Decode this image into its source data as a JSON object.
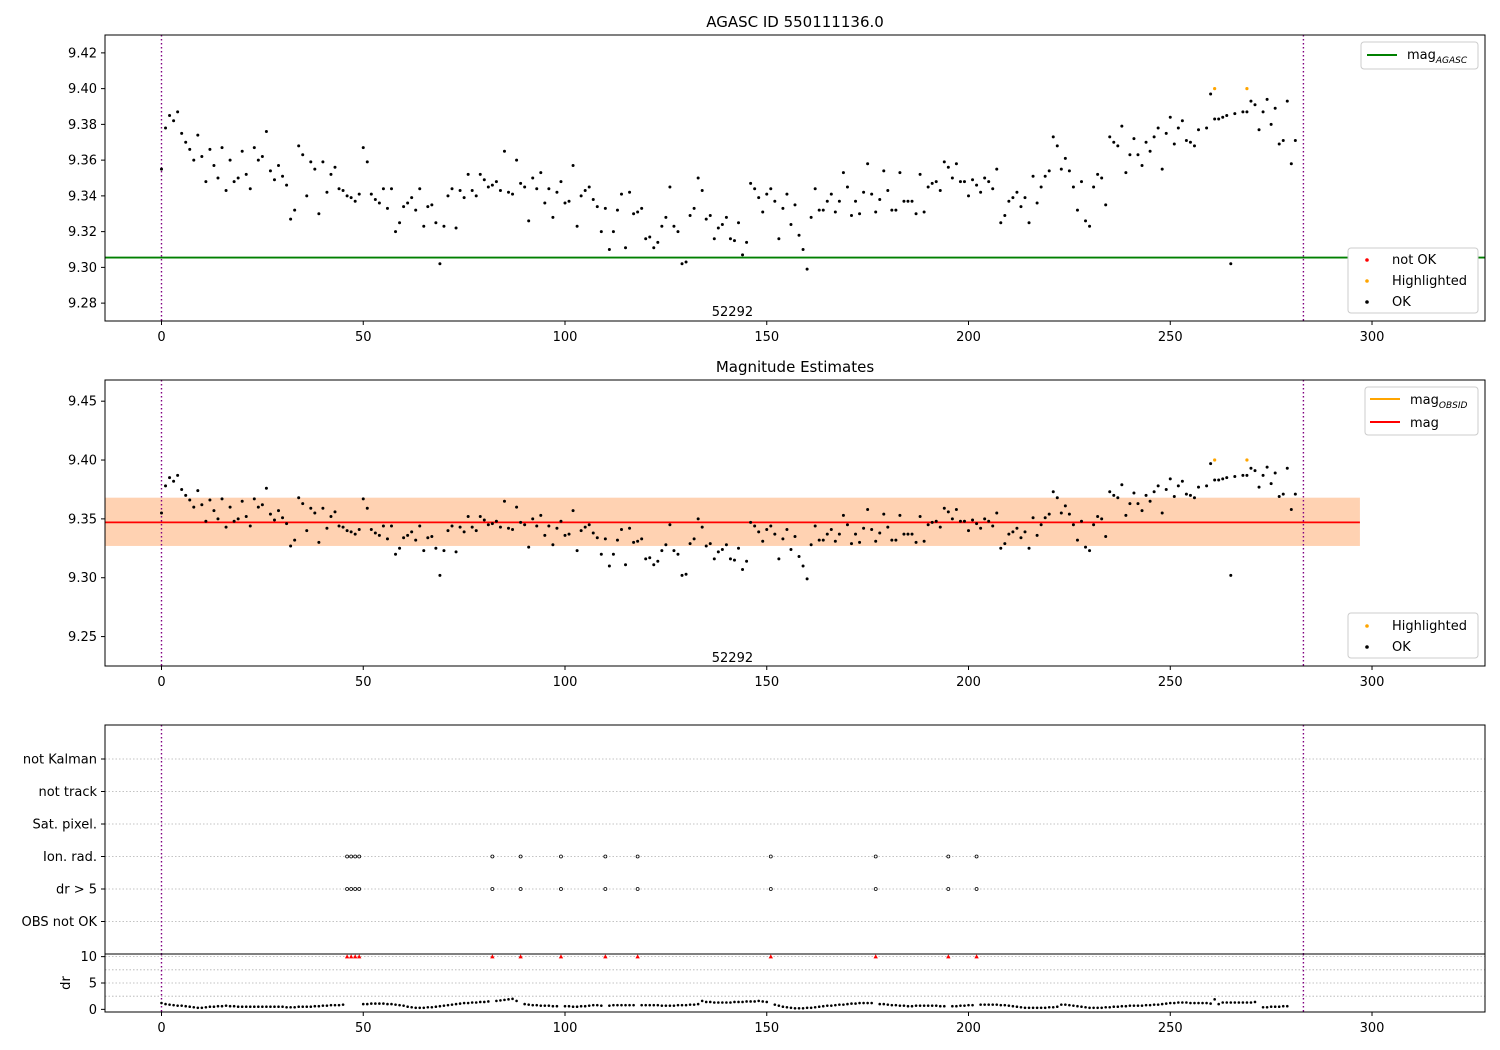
{
  "chart_data": [
    {
      "type": "scatter",
      "title": "AGASC ID 550111136.0",
      "xlim": [
        -14,
        328
      ],
      "ylim": [
        9.27,
        9.43
      ],
      "xticks": [
        0,
        50,
        100,
        150,
        200,
        250,
        300
      ],
      "yticks": [
        9.28,
        9.3,
        9.32,
        9.34,
        9.36,
        9.38,
        9.4,
        9.42
      ],
      "ytick_decimals": 2,
      "vlines": [
        0,
        283
      ],
      "annotation": {
        "text": "52292",
        "x": 141.5,
        "y": 9.275
      },
      "hline": {
        "name": "mag",
        "subscript": "AGASC",
        "value": 9.3055,
        "color": "#008000"
      },
      "legends": [
        {
          "placement": "upper-right",
          "entries": [
            {
              "label": "mag",
              "subscript": "AGASC",
              "type": "line",
              "color": "#008000"
            }
          ]
        },
        {
          "placement": "lower-right",
          "entries": [
            {
              "label": "not OK",
              "type": "marker",
              "color": "#ff0000"
            },
            {
              "label": "Highlighted",
              "type": "marker",
              "color": "#ffa500"
            },
            {
              "label": "OK",
              "type": "marker",
              "color": "#000000"
            }
          ]
        }
      ],
      "series": [
        {
          "name": "OK",
          "color": "#000000",
          "values": [
            9.355,
            9.378,
            9.385,
            9.382,
            9.387,
            9.375,
            9.37,
            9.366,
            9.36,
            9.374,
            9.362,
            9.348,
            9.366,
            9.357,
            9.35,
            9.367,
            9.343,
            9.36,
            9.348,
            9.35,
            9.365,
            9.352,
            9.344,
            9.367,
            9.36,
            9.362,
            9.376,
            9.354,
            9.349,
            9.357,
            9.351,
            9.346,
            9.327,
            9.332,
            9.368,
            9.363,
            9.34,
            9.359,
            9.355,
            9.33,
            9.359,
            9.342,
            9.352,
            9.356,
            9.344,
            9.343,
            9.34,
            9.339,
            9.337,
            9.341,
            9.367,
            9.359,
            9.341,
            9.338,
            9.336,
            9.344,
            9.333,
            9.344,
            9.32,
            9.325,
            9.334,
            9.336,
            9.339,
            9.332,
            9.344,
            9.323,
            9.334,
            9.335,
            9.325,
            9.302,
            9.323,
            9.34,
            9.344,
            9.322,
            9.343,
            9.339,
            9.352,
            9.343,
            9.34,
            9.352,
            9.349,
            9.345,
            9.346,
            9.348,
            9.343,
            9.365,
            9.342,
            9.341,
            9.36,
            9.347,
            9.345,
            9.326,
            9.35,
            9.344,
            9.353,
            9.336,
            9.344,
            9.328,
            9.342,
            9.348,
            9.336,
            9.337,
            9.357,
            9.323,
            9.34,
            9.343,
            9.345,
            9.338,
            9.334,
            9.32,
            9.333,
            9.31,
            9.32,
            9.332,
            9.341,
            9.311,
            9.342,
            9.33,
            9.331,
            9.333,
            9.316,
            9.317,
            9.311,
            9.314,
            9.323,
            9.328,
            9.345,
            9.323,
            9.32,
            9.302,
            9.303,
            9.329,
            9.333,
            9.35,
            9.343,
            9.327,
            9.329,
            9.316,
            9.322,
            9.324,
            9.328,
            9.316,
            9.315,
            9.325,
            9.307,
            9.314,
            9.347,
            9.344,
            9.339,
            9.331,
            9.341,
            9.344,
            9.337,
            9.316,
            9.333,
            9.341,
            9.324,
            9.335,
            9.318,
            9.31,
            9.299,
            9.328,
            9.344,
            9.332,
            9.332,
            9.337,
            9.341,
            9.331,
            9.337,
            9.353,
            9.345,
            9.329,
            9.337,
            9.33,
            9.342,
            9.358,
            9.341,
            9.331,
            9.338,
            9.354,
            9.343,
            9.332,
            9.332,
            9.353,
            9.337,
            9.337,
            9.337,
            9.33,
            9.352,
            9.331,
            9.345,
            9.347,
            9.348,
            9.343,
            9.359,
            9.356,
            9.35,
            9.358,
            9.348,
            9.348,
            9.34,
            9.349,
            9.346,
            9.342,
            9.35,
            9.348,
            9.344,
            9.355,
            9.325,
            9.329,
            9.337,
            9.339,
            9.342,
            9.334,
            9.339,
            9.325,
            9.351,
            9.336,
            9.345,
            9.351,
            9.354,
            9.373,
            9.368,
            9.355,
            9.361,
            9.354,
            9.345,
            9.332,
            9.348,
            9.326,
            9.323,
            9.345,
            9.352,
            9.35,
            9.335,
            9.373,
            9.37,
            9.368,
            9.379,
            9.353,
            9.363,
            9.372,
            9.363,
            9.357,
            9.37,
            9.365,
            9.373,
            9.378,
            9.355,
            9.375,
            9.384,
            9.369,
            9.378,
            9.382,
            9.371,
            9.37,
            9.368,
            9.377,
            null,
            9.378,
            9.397,
            9.383,
            9.383,
            9.384,
            9.385,
            9.302,
            9.386,
            null,
            9.387,
            9.387,
            9.393,
            9.391,
            9.377,
            9.387,
            9.394,
            9.38,
            9.389,
            9.369,
            9.371,
            9.393,
            9.358,
            9.371
          ]
        },
        {
          "name": "Highlighted",
          "color": "#ffa500",
          "points": [
            {
              "x": 261,
              "y": 9.4
            },
            {
              "x": 269,
              "y": 9.4
            }
          ]
        }
      ]
    },
    {
      "type": "scatter",
      "title": "Magnitude Estimates",
      "xlim": [
        -14,
        328
      ],
      "ylim": [
        9.225,
        9.468
      ],
      "xticks": [
        0,
        50,
        100,
        150,
        200,
        250,
        300
      ],
      "yticks": [
        9.25,
        9.3,
        9.35,
        9.4,
        9.45
      ],
      "ytick_decimals": 2,
      "vlines": [
        0,
        283
      ],
      "annotation": {
        "text": "52292",
        "x": 141.5,
        "y": 9.232
      },
      "mag_line": {
        "value": 9.347,
        "color": "#ff0000",
        "x_range": [
          -14,
          297
        ]
      },
      "bands": [
        {
          "y_range": [
            9.327,
            9.368
          ],
          "x_range": [
            -14,
            297
          ],
          "color": "#ffc0cb",
          "opacity": 0.5
        },
        {
          "y_range": [
            9.327,
            9.368
          ],
          "x_range": [
            -14,
            297
          ],
          "color": "#ffa500",
          "opacity": 0.22
        }
      ],
      "legends": [
        {
          "placement": "upper-right",
          "entries": [
            {
              "label": "mag",
              "subscript": "OBSID",
              "type": "line",
              "color": "#ffa500"
            },
            {
              "label": "mag",
              "type": "line",
              "color": "#ff0000"
            }
          ]
        },
        {
          "placement": "lower-right",
          "entries": [
            {
              "label": "Highlighted",
              "type": "marker",
              "color": "#ffa500"
            },
            {
              "label": "OK",
              "type": "marker",
              "color": "#000000"
            }
          ]
        }
      ],
      "series_ref": 0
    },
    {
      "type": "scatter",
      "title": "",
      "xlim": [
        -14,
        328
      ],
      "categories": [
        "not Kalman",
        "not track",
        "Sat. pixel.",
        "Ion. rad.",
        "dr > 5",
        "OBS not OK"
      ],
      "vlines": [
        0,
        283
      ],
      "flags": [
        {
          "category": "Ion. rad.",
          "x": [
            46,
            47,
            48,
            49,
            82,
            89,
            99,
            110,
            118,
            151,
            177,
            195,
            202
          ]
        },
        {
          "category": "dr > 5",
          "x": [
            46,
            47,
            48,
            49,
            82,
            89,
            99,
            110,
            118,
            151,
            177,
            195,
            202
          ]
        }
      ]
    },
    {
      "type": "scatter",
      "title": "",
      "ylabel": "dr",
      "xlim": [
        -14,
        328
      ],
      "ylim": [
        -0.5,
        10.5
      ],
      "xticks": [
        0,
        50,
        100,
        150,
        200,
        250,
        300
      ],
      "yticks": [
        0,
        5,
        10
      ],
      "ytick_decimals": 0,
      "vlines": [
        0,
        283
      ],
      "clipped": {
        "color": "#ff0000",
        "value": 10,
        "x": [
          46,
          47,
          48,
          49,
          82,
          89,
          99,
          110,
          118,
          151,
          177,
          195,
          202
        ]
      },
      "dr_values": [
        1.2,
        1.0,
        0.9,
        0.8,
        0.7,
        0.7,
        0.6,
        0.5,
        0.4,
        0.3,
        0.3,
        0.4,
        0.5,
        0.5,
        0.6,
        0.6,
        0.7,
        0.6,
        0.6,
        0.5,
        0.5,
        0.5,
        0.5,
        0.5,
        0.5,
        0.5,
        0.5,
        0.5,
        0.5,
        0.5,
        0.5,
        0.4,
        0.4,
        0.4,
        0.5,
        0.5,
        0.5,
        0.5,
        0.6,
        0.6,
        0.7,
        0.7,
        0.8,
        0.8,
        0.8,
        0.9,
        null,
        null,
        null,
        null,
        1.0,
        1.0,
        1.1,
        1.1,
        1.1,
        1.1,
        1.0,
        1.0,
        0.9,
        0.8,
        0.7,
        0.5,
        0.4,
        0.3,
        0.3,
        0.3,
        0.4,
        0.4,
        0.5,
        0.6,
        0.7,
        0.8,
        0.9,
        1.0,
        1.1,
        1.2,
        1.2,
        1.3,
        1.3,
        1.4,
        1.4,
        1.5,
        null,
        1.6,
        1.7,
        1.8,
        1.9,
        2.0,
        1.6,
        null,
        1.0,
        0.9,
        0.8,
        0.8,
        0.7,
        0.7,
        0.7,
        0.6,
        0.6,
        null,
        0.6,
        0.6,
        0.5,
        0.5,
        0.6,
        0.6,
        0.7,
        0.8,
        0.8,
        0.7,
        null,
        0.7,
        0.8,
        0.8,
        0.8,
        0.8,
        0.8,
        0.8,
        null,
        0.8,
        0.8,
        0.8,
        0.8,
        0.8,
        0.7,
        0.7,
        0.7,
        0.7,
        0.8,
        0.8,
        0.8,
        0.9,
        0.9,
        1.0,
        1.6,
        1.4,
        1.4,
        1.3,
        1.3,
        1.3,
        1.3,
        1.3,
        1.4,
        1.4,
        1.4,
        1.5,
        1.5,
        1.5,
        1.6,
        1.5,
        1.4,
        null,
        0.9,
        0.7,
        0.5,
        0.4,
        0.3,
        0.2,
        0.2,
        0.2,
        0.3,
        0.3,
        0.4,
        0.5,
        0.6,
        0.7,
        0.7,
        0.8,
        0.9,
        0.9,
        1.0,
        1.1,
        1.1,
        1.2,
        1.2,
        1.2,
        1.2,
        null,
        1.0,
        1.0,
        0.9,
        0.8,
        0.8,
        0.7,
        0.7,
        0.6,
        0.6,
        0.7,
        0.7,
        0.7,
        0.7,
        0.7,
        0.7,
        0.6,
        0.6,
        null,
        0.6,
        0.6,
        0.7,
        0.7,
        0.8,
        0.8,
        null,
        0.9,
        0.9,
        0.9,
        0.9,
        0.9,
        0.8,
        0.8,
        0.7,
        0.6,
        0.5,
        0.4,
        0.3,
        0.3,
        0.3,
        0.3,
        0.3,
        0.3,
        0.4,
        0.4,
        0.5,
        0.9,
        0.9,
        0.8,
        0.7,
        0.6,
        0.5,
        0.4,
        0.3,
        0.3,
        0.3,
        0.3,
        0.4,
        0.4,
        0.5,
        0.5,
        0.6,
        0.6,
        0.7,
        0.7,
        0.7,
        0.7,
        0.8,
        0.8,
        0.9,
        0.9,
        1.0,
        1.1,
        1.2,
        1.2,
        1.3,
        1.3,
        1.3,
        1.2,
        1.2,
        1.2,
        1.2,
        1.2,
        1.1,
        1.9,
        1.0,
        1.3,
        1.3,
        1.3,
        1.3,
        1.3,
        1.3,
        1.3,
        1.3,
        1.4,
        null,
        0.4,
        0.4,
        0.5,
        0.5,
        0.5,
        0.6,
        0.6
      ]
    }
  ]
}
